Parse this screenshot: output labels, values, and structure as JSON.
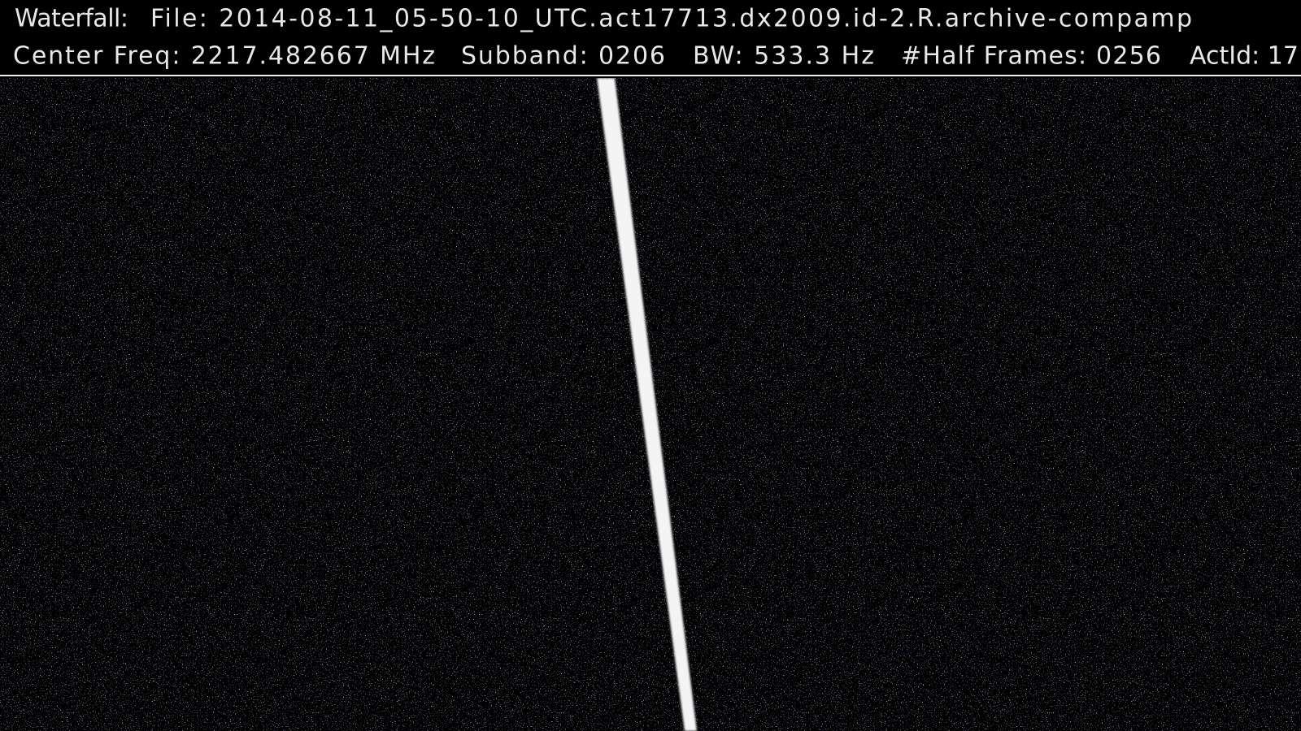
{
  "header": {
    "line1": [
      "Waterfall:",
      "File: 2014-08-11_05-50-10_UTC.act17713.dx2009.id-2.R.archive-compamp"
    ],
    "line2": [
      "Center Freq: 2217.482667 MHz",
      "Subband: 0206",
      "BW: 533.3 Hz",
      "#Half Frames: 0256",
      "ActId: 17"
    ]
  }
}
